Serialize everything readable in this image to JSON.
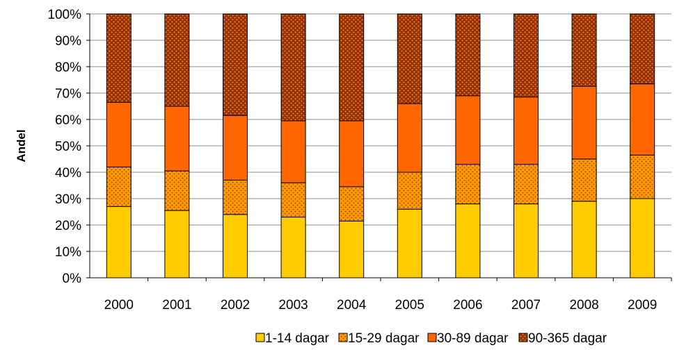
{
  "chart_data": {
    "type": "bar",
    "stacked": true,
    "percent_stacked": true,
    "categories": [
      "2000",
      "2001",
      "2002",
      "2003",
      "2004",
      "2005",
      "2006",
      "2007",
      "2008",
      "2009"
    ],
    "series": [
      {
        "name": "1-14 dagar",
        "values": [
          27,
          25.5,
          24,
          23,
          21.5,
          26,
          28,
          28,
          29,
          30
        ],
        "color": "#ffcc00",
        "pattern": "none"
      },
      {
        "name": "15-29 dagar",
        "values": [
          15,
          15,
          13,
          13,
          13,
          14,
          15,
          15,
          16,
          16.5
        ],
        "color": "#ff9900",
        "pattern": "dots"
      },
      {
        "name": "30-89 dagar",
        "values": [
          24.5,
          24.5,
          24.5,
          23.5,
          25,
          26,
          26,
          25.5,
          27.5,
          27
        ],
        "color": "#ff6600",
        "pattern": "none"
      },
      {
        "name": "90-365 dagar",
        "values": [
          33.5,
          35,
          38.5,
          40.5,
          40.5,
          34,
          31,
          31.5,
          27.5,
          26.5
        ],
        "color": "#993300",
        "pattern": "dots"
      }
    ],
    "ylabel": "Andel",
    "xlabel": "",
    "title": "",
    "ylim": [
      0,
      100
    ],
    "yticks": [
      "0%",
      "10%",
      "20%",
      "30%",
      "40%",
      "50%",
      "60%",
      "70%",
      "80%",
      "90%",
      "100%"
    ],
    "grid": true,
    "legend": "bottom"
  }
}
